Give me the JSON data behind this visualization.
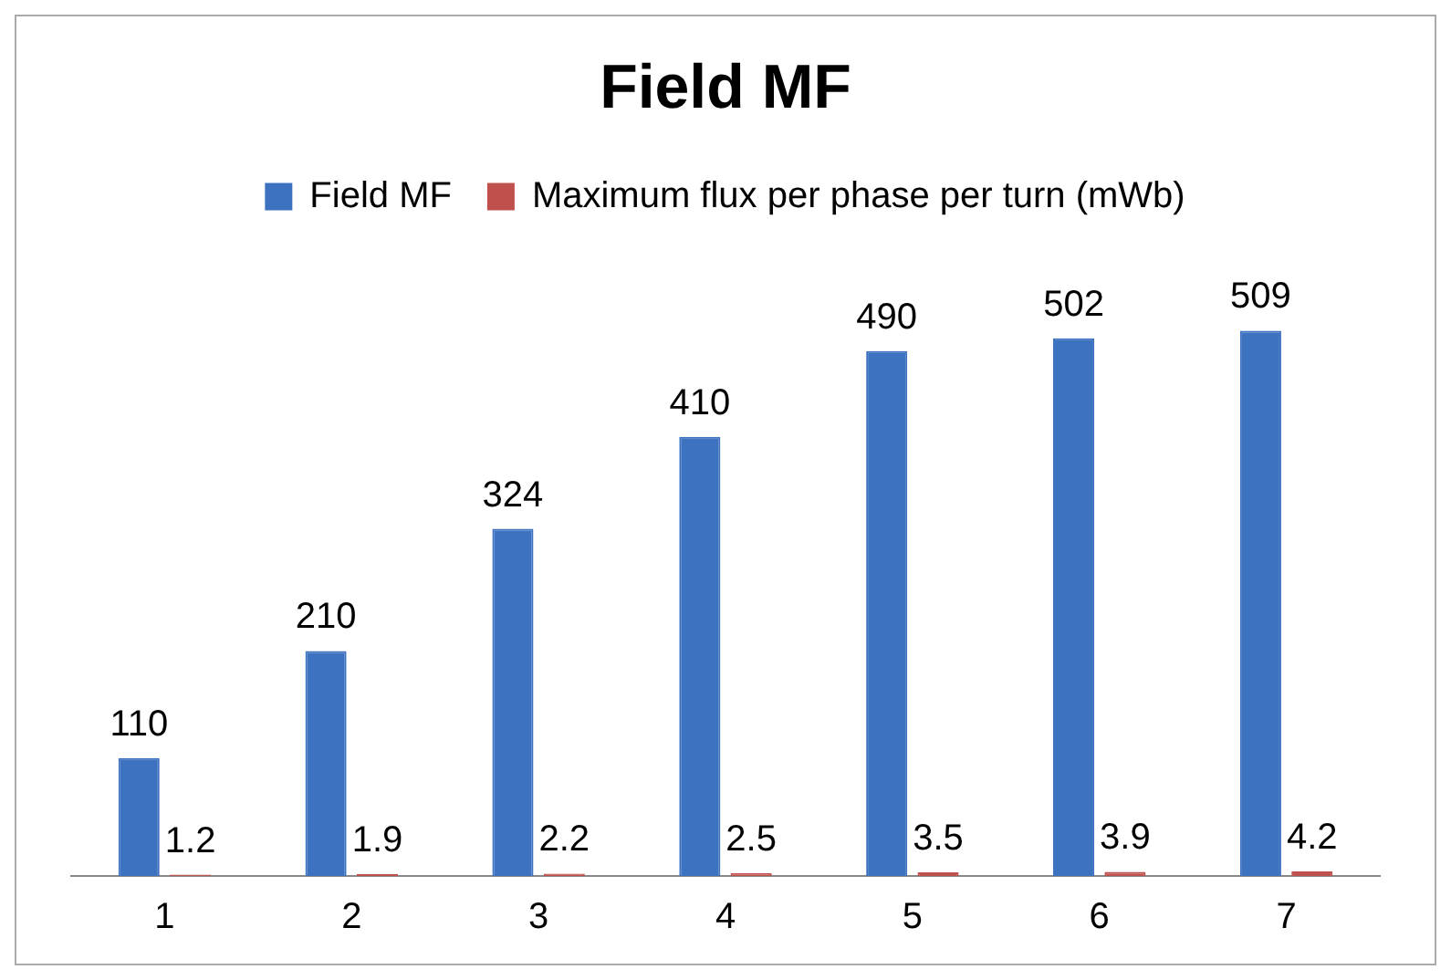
{
  "chart_data": {
    "type": "bar",
    "title": "Field MF",
    "categories": [
      "1",
      "2",
      "3",
      "4",
      "5",
      "6",
      "7"
    ],
    "series": [
      {
        "name": "Field MF",
        "color": "#3d72c0",
        "values": [
          110,
          210,
          324,
          410,
          490,
          502,
          509
        ]
      },
      {
        "name": "Maximum flux per phase per turn (mWb)",
        "color": "#c0504d",
        "values": [
          1.2,
          1.9,
          2.2,
          2.5,
          3.5,
          3.9,
          4.2
        ]
      }
    ],
    "data_labels": true,
    "legend": "top",
    "grid": false
  }
}
